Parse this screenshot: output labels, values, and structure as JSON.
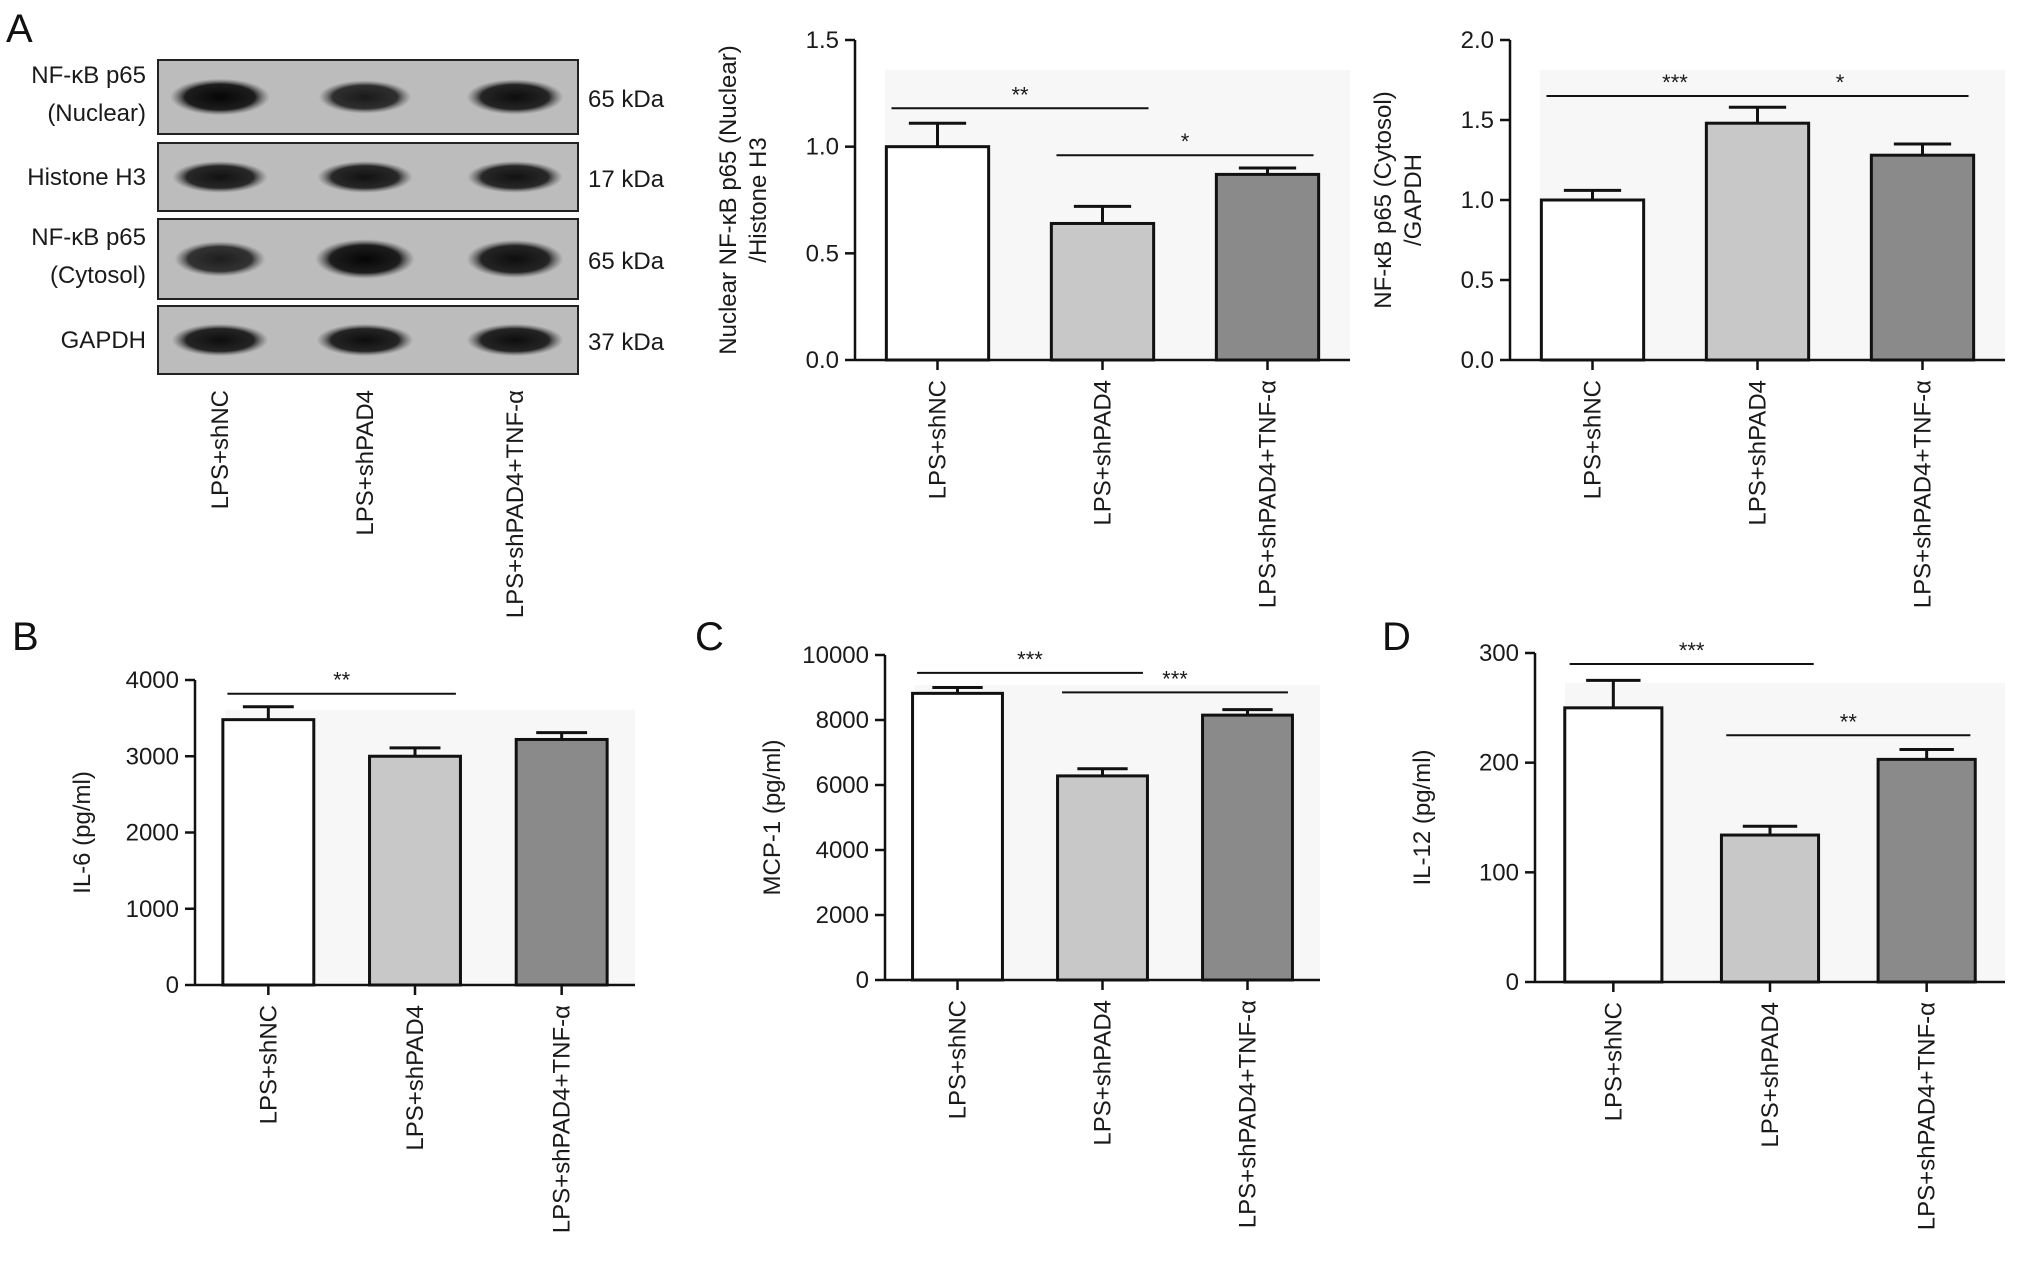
{
  "panel_letters": [
    "A",
    "B",
    "C",
    "D"
  ],
  "blot": {
    "rows": [
      {
        "label": [
          "NF-κB p65",
          "(Nuclear)"
        ],
        "kda": "65 kDa",
        "intensity": [
          1.0,
          0.75,
          0.9
        ]
      },
      {
        "label": [
          "Histone H3"
        ],
        "kda": "17 kDa",
        "intensity": [
          0.85,
          0.85,
          0.85
        ]
      },
      {
        "label": [
          "NF-κB p65",
          "(Cytosol)"
        ],
        "kda": "65 kDa",
        "intensity": [
          0.7,
          1.0,
          0.9
        ]
      },
      {
        "label": [
          "GAPDH"
        ],
        "kda": "37 kDa",
        "intensity": [
          0.9,
          0.9,
          0.9
        ]
      }
    ],
    "lanes": [
      "LPS+shNC",
      "LPS+shPAD4",
      "LPS+shPAD4+TNF-α"
    ]
  },
  "chart_data": [
    {
      "type": "bar",
      "panel": "A",
      "categories": [
        "LPS+shNC",
        "LPS+shPAD4",
        "LPS+shPAD4+TNF-α"
      ],
      "values": [
        1.0,
        0.64,
        0.87
      ],
      "errors": [
        0.11,
        0.08,
        0.03
      ],
      "colors": [
        "#ffffff",
        "#c8c8c8",
        "#8a8a8a"
      ],
      "ylabel": [
        "Nuclear NF-κB p65 (Nuclear)",
        "/Histone H3"
      ],
      "ylim": [
        0,
        1.5
      ],
      "yticks": [
        0.0,
        0.5,
        1.0,
        1.5
      ],
      "ytick_labels": [
        "0.0",
        "0.5",
        "1.0",
        "1.5"
      ],
      "significance": [
        {
          "from": 0,
          "to": 1,
          "label": "**",
          "y": 1.18
        },
        {
          "from": 1,
          "to": 2,
          "label": "*",
          "y": 0.96
        }
      ]
    },
    {
      "type": "bar",
      "panel": "A",
      "categories": [
        "LPS+shNC",
        "LPS+shPAD4",
        "LPS+shPAD4+TNF-α"
      ],
      "values": [
        1.0,
        1.48,
        1.28
      ],
      "errors": [
        0.06,
        0.1,
        0.07
      ],
      "colors": [
        "#ffffff",
        "#c8c8c8",
        "#8a8a8a"
      ],
      "ylabel": [
        "NF-κB p65 (Cytosol)",
        "/GAPDH"
      ],
      "ylim": [
        0,
        2.0
      ],
      "yticks": [
        0.0,
        0.5,
        1.0,
        1.5,
        2.0
      ],
      "ytick_labels": [
        "0.0",
        "0.5",
        "1.0",
        "1.5",
        "2.0"
      ],
      "significance": [
        {
          "from": 0,
          "to": 1,
          "label": "***",
          "y": 1.65
        },
        {
          "from": 1,
          "to": 2,
          "label": "*",
          "y": 1.65
        }
      ]
    },
    {
      "type": "bar",
      "panel": "B",
      "categories": [
        "LPS+shNC",
        "LPS+shPAD4",
        "LPS+shPAD4+TNF-α"
      ],
      "values": [
        3480,
        3000,
        3220
      ],
      "errors": [
        170,
        110,
        90
      ],
      "colors": [
        "#ffffff",
        "#c8c8c8",
        "#8a8a8a"
      ],
      "ylabel": [
        "IL-6 (pg/ml)"
      ],
      "ylim": [
        0,
        4000
      ],
      "yticks": [
        0,
        1000,
        2000,
        3000,
        4000
      ],
      "ytick_labels": [
        "0",
        "1000",
        "2000",
        "3000",
        "4000"
      ],
      "significance": [
        {
          "from": 0,
          "to": 1,
          "label": "**",
          "y": 3820
        }
      ]
    },
    {
      "type": "bar",
      "panel": "C",
      "categories": [
        "LPS+shNC",
        "LPS+shPAD4",
        "LPS+shPAD4+TNF-α"
      ],
      "values": [
        8820,
        6280,
        8150
      ],
      "errors": [
        180,
        220,
        170
      ],
      "colors": [
        "#ffffff",
        "#c8c8c8",
        "#8a8a8a"
      ],
      "ylabel": [
        "MCP-1 (pg/ml)"
      ],
      "ylim": [
        0,
        10000
      ],
      "yticks": [
        0,
        2000,
        4000,
        6000,
        8000,
        10000
      ],
      "ytick_labels": [
        "0",
        "2000",
        "4000",
        "6000",
        "8000",
        "10000"
      ],
      "significance": [
        {
          "from": 0,
          "to": 1,
          "label": "***",
          "y": 9450
        },
        {
          "from": 1,
          "to": 2,
          "label": "***",
          "y": 8850
        }
      ]
    },
    {
      "type": "bar",
      "panel": "D",
      "categories": [
        "LPS+shNC",
        "LPS+shPAD4",
        "LPS+shPAD4+TNF-α"
      ],
      "values": [
        250,
        134,
        203
      ],
      "errors": [
        25,
        8,
        9
      ],
      "colors": [
        "#ffffff",
        "#c8c8c8",
        "#8a8a8a"
      ],
      "ylabel": [
        "IL-12 (pg/ml)"
      ],
      "ylim": [
        0,
        300
      ],
      "yticks": [
        0,
        100,
        200,
        300
      ],
      "ytick_labels": [
        "0",
        "100",
        "200",
        "300"
      ],
      "significance": [
        {
          "from": 0,
          "to": 1,
          "label": "***",
          "y": 290
        },
        {
          "from": 1,
          "to": 2,
          "label": "**",
          "y": 225
        }
      ]
    }
  ]
}
